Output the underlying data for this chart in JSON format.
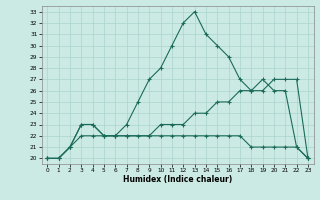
{
  "xlabel": "Humidex (Indice chaleur)",
  "xlim": [
    -0.5,
    23.5
  ],
  "ylim": [
    19.5,
    33.5
  ],
  "xticks": [
    0,
    1,
    2,
    3,
    4,
    5,
    6,
    7,
    8,
    9,
    10,
    11,
    12,
    13,
    14,
    15,
    16,
    17,
    18,
    19,
    20,
    21,
    22,
    23
  ],
  "yticks": [
    20,
    21,
    22,
    23,
    24,
    25,
    26,
    27,
    28,
    29,
    30,
    31,
    32,
    33
  ],
  "bg_color": "#cceae4",
  "line_color": "#1a6b5a",
  "grid_color": "#aad4cc",
  "line1_x": [
    0,
    1,
    2,
    3,
    4,
    5,
    6,
    7,
    8,
    9,
    10,
    11,
    12,
    13,
    14,
    15,
    16,
    17,
    18,
    19,
    20,
    21,
    22,
    23
  ],
  "line1_y": [
    20,
    20,
    21,
    23,
    23,
    22,
    22,
    23,
    25,
    27,
    28,
    30,
    32,
    33,
    31,
    30,
    29,
    27,
    26,
    27,
    26,
    26,
    21,
    20
  ],
  "line2_x": [
    0,
    1,
    2,
    3,
    4,
    5,
    6,
    7,
    8,
    9,
    10,
    11,
    12,
    13,
    14,
    15,
    16,
    17,
    18,
    19,
    20,
    21,
    22,
    23
  ],
  "line2_y": [
    20,
    20,
    21,
    23,
    23,
    22,
    22,
    22,
    22,
    22,
    23,
    23,
    23,
    24,
    24,
    25,
    25,
    26,
    26,
    26,
    27,
    27,
    27,
    20
  ],
  "line3_x": [
    0,
    1,
    2,
    3,
    4,
    5,
    6,
    7,
    9,
    10,
    11,
    12,
    13,
    14,
    15,
    16,
    17,
    18,
    19,
    20,
    21,
    22,
    23
  ],
  "line3_y": [
    20,
    20,
    21,
    22,
    22,
    22,
    22,
    22,
    22,
    22,
    22,
    22,
    22,
    22,
    22,
    22,
    22,
    21,
    21,
    21,
    21,
    21,
    20
  ]
}
